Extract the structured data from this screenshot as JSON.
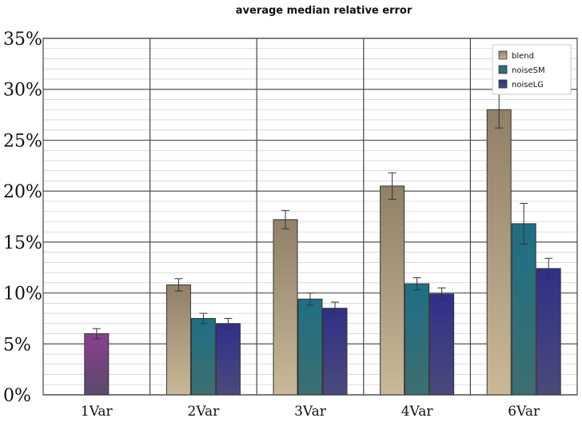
{
  "chart_data": {
    "type": "bar",
    "title": "average median relative error",
    "xlabel": "",
    "ylabel": "",
    "ylim": [
      0,
      35
    ],
    "y_ticks": [
      "0%",
      "5%",
      "10%",
      "15%",
      "20%",
      "25%",
      "30%",
      "35%"
    ],
    "categories": [
      "1Var",
      "2Var",
      "3Var",
      "4Var",
      "6Var"
    ],
    "grid": true,
    "legend_position": "top-right",
    "series": [
      {
        "name": "blend",
        "color": "#8f8068",
        "values": [
          null,
          10.8,
          17.2,
          20.5,
          28.0
        ],
        "err": [
          null,
          0.6,
          0.9,
          1.3,
          1.8
        ]
      },
      {
        "name": "noiseSM",
        "color": "#2c6b80",
        "values": [
          null,
          7.5,
          9.4,
          10.9,
          16.8
        ],
        "err": [
          null,
          0.5,
          0.6,
          0.6,
          2.0
        ]
      },
      {
        "name": "noiseLG",
        "color": "#3a3a88",
        "values": [
          null,
          7.0,
          8.5,
          9.9,
          12.4
        ],
        "err": [
          null,
          0.5,
          0.6,
          0.6,
          1.0
        ]
      }
    ],
    "extra_bars": [
      {
        "category": "1Var",
        "value": 6.0,
        "err": 0.5,
        "color": "#7a4480"
      }
    ]
  }
}
